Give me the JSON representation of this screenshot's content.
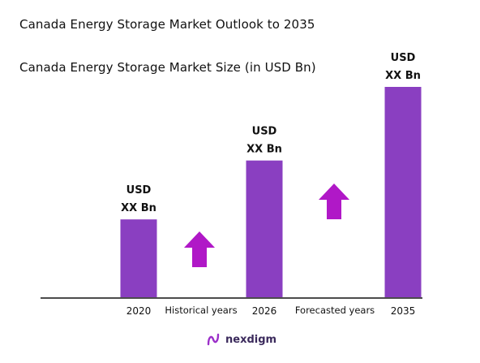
{
  "title": "Canada Energy Storage Market Outlook to 2035",
  "subtitle": "Canada Energy Storage Market Size (in USD Bn)",
  "colors": {
    "bar": "#8a3fc1",
    "arrow": "#b018c7",
    "axis": "#111111",
    "logo": "#9b2fc9"
  },
  "chart_data": {
    "type": "bar",
    "title": "Canada Energy Storage Market Size (in USD Bn)",
    "categories": [
      "2020",
      "2026",
      "2035"
    ],
    "values": [
      0.37,
      0.65,
      1.0
    ],
    "value_note": "relative bar heights; actual values not disclosed",
    "data_labels": [
      [
        "USD",
        "XX Bn"
      ],
      [
        "USD",
        "XX Bn"
      ],
      [
        "USD",
        "XX Bn"
      ]
    ],
    "period_labels": [
      "Historical years",
      "Forecasted years"
    ],
    "grid": false,
    "legend": "none"
  },
  "logo": {
    "text": "nexdigm"
  }
}
